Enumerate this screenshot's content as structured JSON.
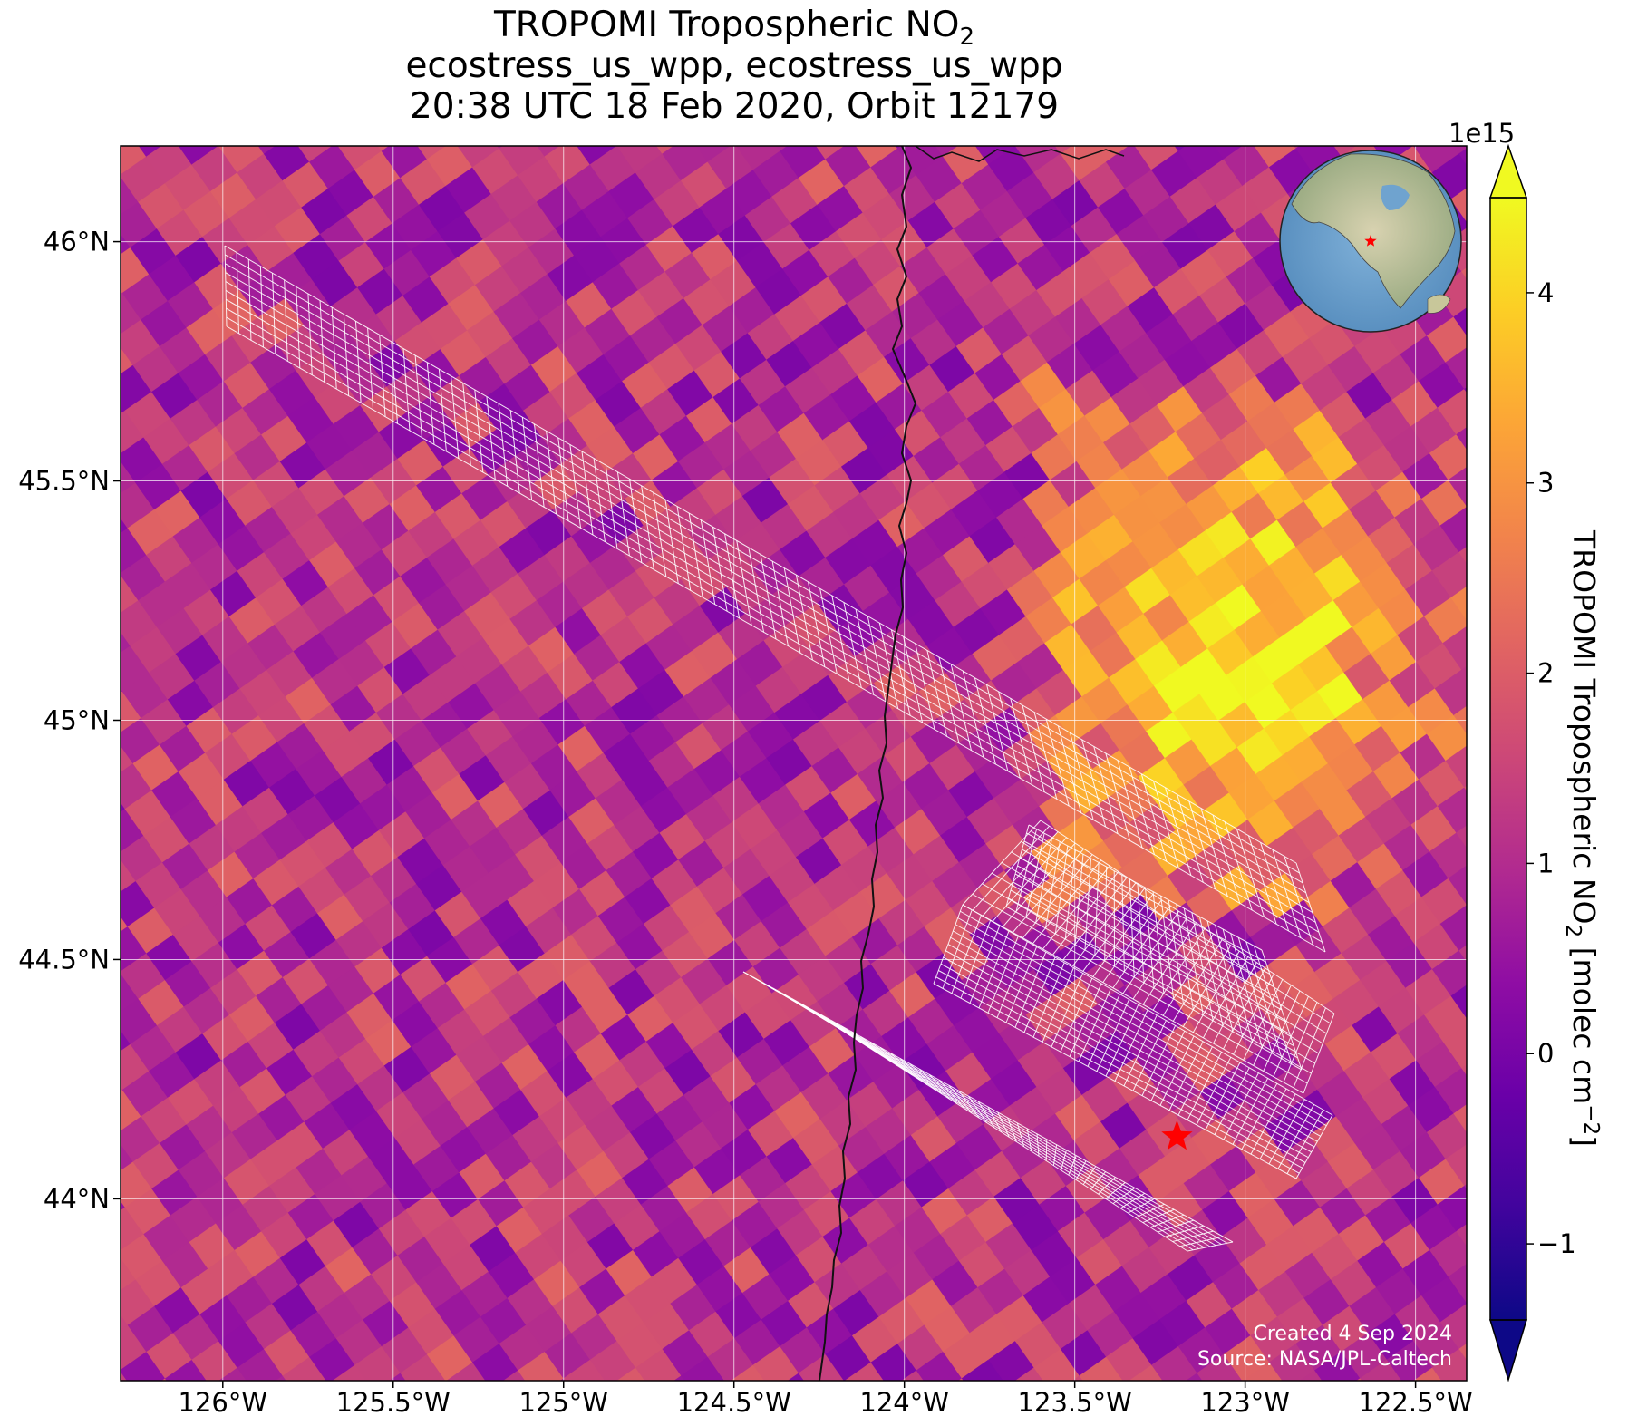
{
  "title": {
    "line1_main": "TROPOMI Tropospheric NO",
    "line1_sub": "2",
    "line2": "ecostress_us_wpp, ecostress_us_wpp",
    "line3": "20:38 UTC 18 Feb 2020, Orbit 12179"
  },
  "map": {
    "lon_range": [
      -126.3,
      -122.35
    ],
    "lat_range": [
      43.62,
      46.2
    ],
    "lon_ticks": [
      {
        "value": -126.0,
        "label": "126°W"
      },
      {
        "value": -125.5,
        "label": "125.5°W"
      },
      {
        "value": -125.0,
        "label": "125°W"
      },
      {
        "value": -124.5,
        "label": "124.5°W"
      },
      {
        "value": -124.0,
        "label": "124°W"
      },
      {
        "value": -123.5,
        "label": "123.5°W"
      },
      {
        "value": -123.0,
        "label": "123°W"
      },
      {
        "value": -122.5,
        "label": "122.5°W"
      }
    ],
    "lat_ticks": [
      {
        "value": 46.0,
        "label": "46°N"
      },
      {
        "value": 45.5,
        "label": "45.5°N"
      },
      {
        "value": 45.0,
        "label": "45°N"
      },
      {
        "value": 44.5,
        "label": "44.5°N"
      },
      {
        "value": 44.0,
        "label": "44°N"
      }
    ],
    "gridlines": true,
    "site_marker": {
      "lon": -123.2,
      "lat": 44.13,
      "color": "#ff0000",
      "icon": "star-icon"
    },
    "inset": "globe-inset-top-right"
  },
  "colorbar": {
    "label_main": "TROPOMI Tropospheric NO",
    "label_sub": "2",
    "label_unit": " [molec cm",
    "label_unit_sup": "−2",
    "label_end": "]",
    "exponent": "1e15",
    "range": [
      -1.4,
      4.5
    ],
    "colormap": "plasma",
    "extend": "both",
    "ticks": [
      {
        "value": -1,
        "label": "−1"
      },
      {
        "value": 0,
        "label": "0"
      },
      {
        "value": 1,
        "label": "1"
      },
      {
        "value": 2,
        "label": "2"
      },
      {
        "value": 3,
        "label": "3"
      },
      {
        "value": 4,
        "label": "4"
      }
    ]
  },
  "footer": {
    "created": "Created 4 Sep 2024",
    "source": "Source: NASA/JPL-Caltech"
  }
}
